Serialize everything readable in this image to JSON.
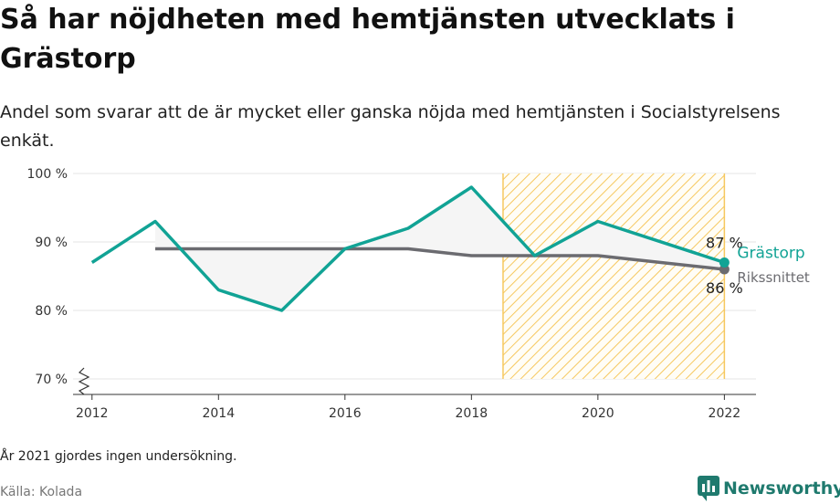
{
  "title": "Så har nöjdheten med hemtjänsten utvecklats i Grästorp",
  "subtitle": "Andel som svarar att de är mycket eller ganska nöjda med hemtjänsten i Socialstyrelsens enkät.",
  "note": "År 2021 gjordes ingen undersökning.",
  "source": "Källa: Kolada",
  "brand": "Newsworthy",
  "colors": {
    "grastorp": "#11a395",
    "national": "#6b6b70",
    "hatch": "#f6c85f",
    "grid": "#e4e4e4",
    "fill": "#f5f5f5"
  },
  "chart_data": {
    "type": "line",
    "ylim": [
      70,
      100
    ],
    "xlim": [
      2011.7,
      2022.5
    ],
    "xticks": [
      2012,
      2014,
      2016,
      2018,
      2020,
      2022
    ],
    "yticks": [
      70,
      80,
      90,
      100
    ],
    "ytick_labels": [
      "70 %",
      "80 %",
      "90 %",
      "100 %"
    ],
    "xtick_labels": [
      "2012",
      "2014",
      "2016",
      "2018",
      "2020",
      "2022"
    ],
    "highlight_range": [
      2018.5,
      2022
    ],
    "grid": true,
    "series": [
      {
        "name": "Grästorp",
        "key": "grastorp",
        "x": [
          2012,
          2013,
          2014,
          2015,
          2016,
          2017,
          2018,
          2019,
          2020,
          2022
        ],
        "values": [
          87,
          93,
          83,
          80,
          89,
          92,
          98,
          88,
          93,
          87
        ],
        "end_label": "87 %"
      },
      {
        "name": "Rikssnittet",
        "key": "national",
        "x": [
          2013,
          2014,
          2015,
          2016,
          2017,
          2018,
          2019,
          2020,
          2022
        ],
        "values": [
          89,
          89,
          89,
          89,
          89,
          88,
          88,
          88,
          86
        ],
        "end_label": "86 %"
      }
    ]
  }
}
